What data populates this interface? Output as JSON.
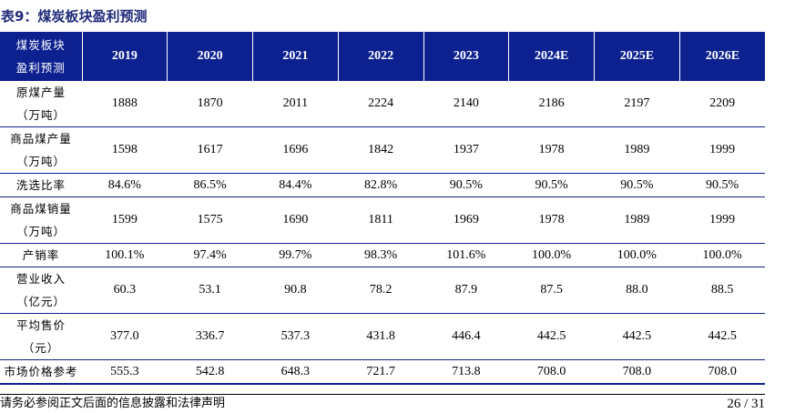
{
  "caption": "表9：煤炭板块盈利预测",
  "table": {
    "header_label": [
      "煤炭板块",
      "盈利预测"
    ],
    "years": [
      "2019",
      "2020",
      "2021",
      "2022",
      "2023",
      "2024E",
      "2025E",
      "2026E"
    ],
    "rows": [
      {
        "label": [
          "原煤产量",
          "（万吨）"
        ],
        "values": [
          "1888",
          "1870",
          "2011",
          "2224",
          "2140",
          "2186",
          "2197",
          "2209"
        ]
      },
      {
        "label": [
          "商品煤产量",
          "（万吨）"
        ],
        "values": [
          "1598",
          "1617",
          "1696",
          "1842",
          "1937",
          "1978",
          "1989",
          "1999"
        ]
      },
      {
        "label": [
          "洗选比率"
        ],
        "values": [
          "84.6%",
          "86.5%",
          "84.4%",
          "82.8%",
          "90.5%",
          "90.5%",
          "90.5%",
          "90.5%"
        ]
      },
      {
        "label": [
          "商品煤销量",
          "（万吨）"
        ],
        "values": [
          "1599",
          "1575",
          "1690",
          "1811",
          "1969",
          "1978",
          "1989",
          "1999"
        ]
      },
      {
        "label": [
          "产销率"
        ],
        "values": [
          "100.1%",
          "97.4%",
          "99.7%",
          "98.3%",
          "101.6%",
          "100.0%",
          "100.0%",
          "100.0%"
        ]
      },
      {
        "label": [
          "营业收入",
          "（亿元）"
        ],
        "values": [
          "60.3",
          "53.1",
          "90.8",
          "78.2",
          "87.9",
          "87.5",
          "88.0",
          "88.5"
        ]
      },
      {
        "label": [
          "平均售价",
          "（元）"
        ],
        "values": [
          "377.0",
          "336.7",
          "537.3",
          "431.8",
          "446.4",
          "442.5",
          "442.5",
          "442.5"
        ]
      },
      {
        "label": [
          "市场价格参考"
        ],
        "values": [
          "555.3",
          "542.8",
          "648.3",
          "721.7",
          "713.8",
          "708.0",
          "708.0",
          "708.0"
        ]
      }
    ]
  },
  "footer": {
    "disclaimer": "请务必参阅正文后面的信息披露和法律声明",
    "page_number": "26 / 31"
  },
  "colors": {
    "header_bg": "#0d2090",
    "caption": "#1f2a7a",
    "rule": "#0d2090"
  }
}
